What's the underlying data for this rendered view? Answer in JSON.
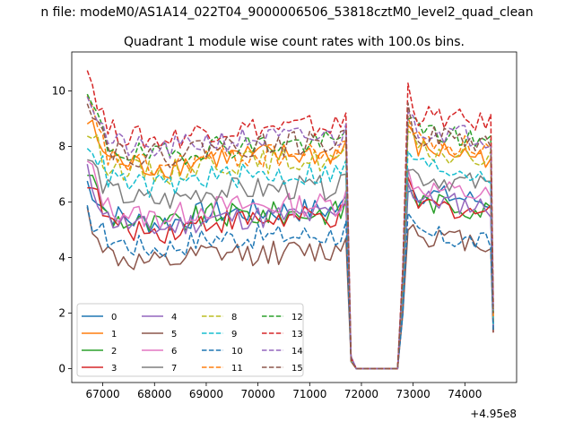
{
  "suptitle": "n file: modeM0/AS1A14_022T04_9000006506_53818cztM0_level2_quad_clean",
  "chart_data": {
    "type": "line",
    "title": "Quadrant 1 module wise count rates with 100.0s bins.",
    "xlabel": "",
    "ylabel": "",
    "x_offset_label": "+4.95e8",
    "xlim": [
      66400,
      75000
    ],
    "ylim": [
      -0.5,
      11.4
    ],
    "xticks": [
      67000,
      68000,
      69000,
      70000,
      71000,
      72000,
      73000,
      74000
    ],
    "yticks": [
      0,
      2,
      4,
      6,
      8,
      10
    ],
    "grid": false,
    "legend_placement": "lower-left",
    "segments": [
      {
        "start": 66700,
        "end": 71700,
        "step": 100
      },
      {
        "start": 72800,
        "end": 74500,
        "step": 100
      }
    ],
    "gap_points": [
      [
        71800,
        0.35
      ],
      [
        71900,
        0.0
      ],
      [
        72000,
        0.0
      ],
      [
        72100,
        0.0
      ],
      [
        72200,
        0.0
      ],
      [
        72300,
        0.0
      ],
      [
        72400,
        0.0
      ],
      [
        72500,
        0.0
      ],
      [
        72600,
        0.0
      ],
      [
        72700,
        0.0
      ]
    ],
    "end_point_x": 74550,
    "series": [
      {
        "name": "0",
        "color": "#1f77b4",
        "dash": "solid",
        "mean": 5.6,
        "peak": 6.7,
        "recovery": 6.4,
        "end": 1.5
      },
      {
        "name": "1",
        "color": "#ff7f0e",
        "dash": "solid",
        "mean": 7.6,
        "peak": 8.9,
        "recovery": 8.0,
        "end": 1.7
      },
      {
        "name": "2",
        "color": "#2ca02c",
        "dash": "solid",
        "mean": 5.5,
        "peak": 7.2,
        "recovery": 6.1,
        "end": 1.4
      },
      {
        "name": "3",
        "color": "#d62728",
        "dash": "solid",
        "mean": 5.3,
        "peak": 6.9,
        "recovery": 6.0,
        "end": 1.3
      },
      {
        "name": "4",
        "color": "#9467bd",
        "dash": "solid",
        "mean": 5.4,
        "peak": 7.0,
        "recovery": 6.2,
        "end": 1.5
      },
      {
        "name": "5",
        "color": "#8c564b",
        "dash": "solid",
        "mean": 4.1,
        "peak": 5.6,
        "recovery": 4.9,
        "end": 1.3
      },
      {
        "name": "6",
        "color": "#e377c2",
        "dash": "solid",
        "mean": 5.8,
        "peak": 7.4,
        "recovery": 6.6,
        "end": 1.5
      },
      {
        "name": "7",
        "color": "#7f7f7f",
        "dash": "solid",
        "mean": 6.4,
        "peak": 7.6,
        "recovery": 7.0,
        "end": 1.6
      },
      {
        "name": "8",
        "color": "#bcbd22",
        "dash": "dashed",
        "mean": 7.4,
        "peak": 8.6,
        "recovery": 7.9,
        "end": 1.7
      },
      {
        "name": "9",
        "color": "#17becf",
        "dash": "dashed",
        "mean": 6.9,
        "peak": 8.3,
        "recovery": 7.4,
        "end": 1.6
      },
      {
        "name": "10",
        "color": "#1f77b4",
        "dash": "dashed",
        "mean": 4.7,
        "peak": 5.5,
        "recovery": 4.9,
        "end": 1.4
      },
      {
        "name": "11",
        "color": "#ff7f0e",
        "dash": "dashed",
        "mean": 7.6,
        "peak": 9.6,
        "recovery": 8.3,
        "end": 1.8
      },
      {
        "name": "12",
        "color": "#2ca02c",
        "dash": "dashed",
        "mean": 8.0,
        "peak": 9.8,
        "recovery": 8.6,
        "end": 2.0
      },
      {
        "name": "13",
        "color": "#d62728",
        "dash": "dashed",
        "mean": 8.6,
        "peak": 10.8,
        "recovery": 9.2,
        "end": 2.4
      },
      {
        "name": "14",
        "color": "#9467bd",
        "dash": "dashed",
        "mean": 8.2,
        "peak": 10.0,
        "recovery": 8.7,
        "end": 2.1
      },
      {
        "name": "15",
        "color": "#8c564b",
        "dash": "dashed",
        "mean": 8.0,
        "peak": 9.9,
        "recovery": 8.5,
        "end": 2.0
      }
    ]
  }
}
